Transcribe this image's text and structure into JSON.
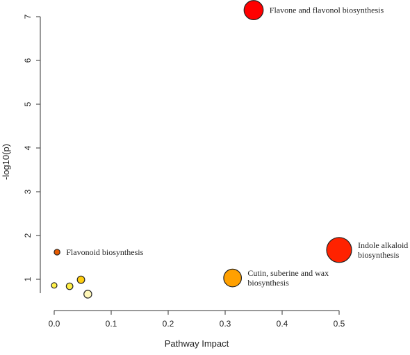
{
  "chart_data": {
    "type": "scatter",
    "title": "",
    "xlabel": "Pathway Impact",
    "ylabel": "-log10(p)",
    "xlim": [
      0,
      0.5
    ],
    "ylim": [
      0.5,
      7
    ],
    "xticks": [
      0,
      0.1,
      0.2,
      0.3,
      0.4,
      0.5
    ],
    "xtick_labels": [
      "0.0",
      "0.1",
      "0.2",
      "0.3",
      "0.4",
      "0.5"
    ],
    "yticks": [
      1,
      2,
      3,
      4,
      5,
      6,
      7
    ],
    "ytick_labels": [
      "1",
      "2",
      "3",
      "4",
      "5",
      "6",
      "7"
    ],
    "grid": false,
    "legend": "none",
    "marker_size_meaning": "pathway impact",
    "marker_color_meaning": "-log10(p): yellow (low) to red (high)",
    "points": [
      {
        "x": 0.35,
        "y": 7.15,
        "size": 0.35,
        "color": "#ff0000",
        "label": "Flavone and flavonol biosynthesis"
      },
      {
        "x": 0.5,
        "y": 1.67,
        "size": 0.5,
        "color": "#ff2200",
        "label": "Indole alkaloid biosynthesis"
      },
      {
        "x": 0.005,
        "y": 1.62,
        "size": 0.005,
        "color": "#e65a00",
        "label": "Flavonoid biosynthesis"
      },
      {
        "x": 0.313,
        "y": 1.03,
        "size": 0.313,
        "color": "#ffa000",
        "label": "Cutin, suberine and wax biosynthesis"
      },
      {
        "x": 0.047,
        "y": 0.99,
        "size": 0.047,
        "color": "#ffcd10",
        "label": ""
      },
      {
        "x": 0.027,
        "y": 0.84,
        "size": 0.027,
        "color": "#ffee44",
        "label": ""
      },
      {
        "x": 0.0,
        "y": 0.86,
        "size": 0.0,
        "color": "#fff04a",
        "label": ""
      },
      {
        "x": 0.059,
        "y": 0.66,
        "size": 0.059,
        "color": "#fff7b8",
        "label": ""
      }
    ],
    "annotations": [
      {
        "lines": [
          "Flavone and flavonol biosynthesis"
        ],
        "point_index": 0,
        "anchor": "right"
      },
      {
        "lines": [
          "Indole alkaloid",
          "biosynthesis"
        ],
        "point_index": 1,
        "anchor": "right"
      },
      {
        "lines": [
          "Flavonoid biosynthesis"
        ],
        "point_index": 2,
        "anchor": "right"
      },
      {
        "lines": [
          "Cutin, suberine and wax",
          "biosynthesis"
        ],
        "point_index": 3,
        "anchor": "right"
      }
    ]
  }
}
